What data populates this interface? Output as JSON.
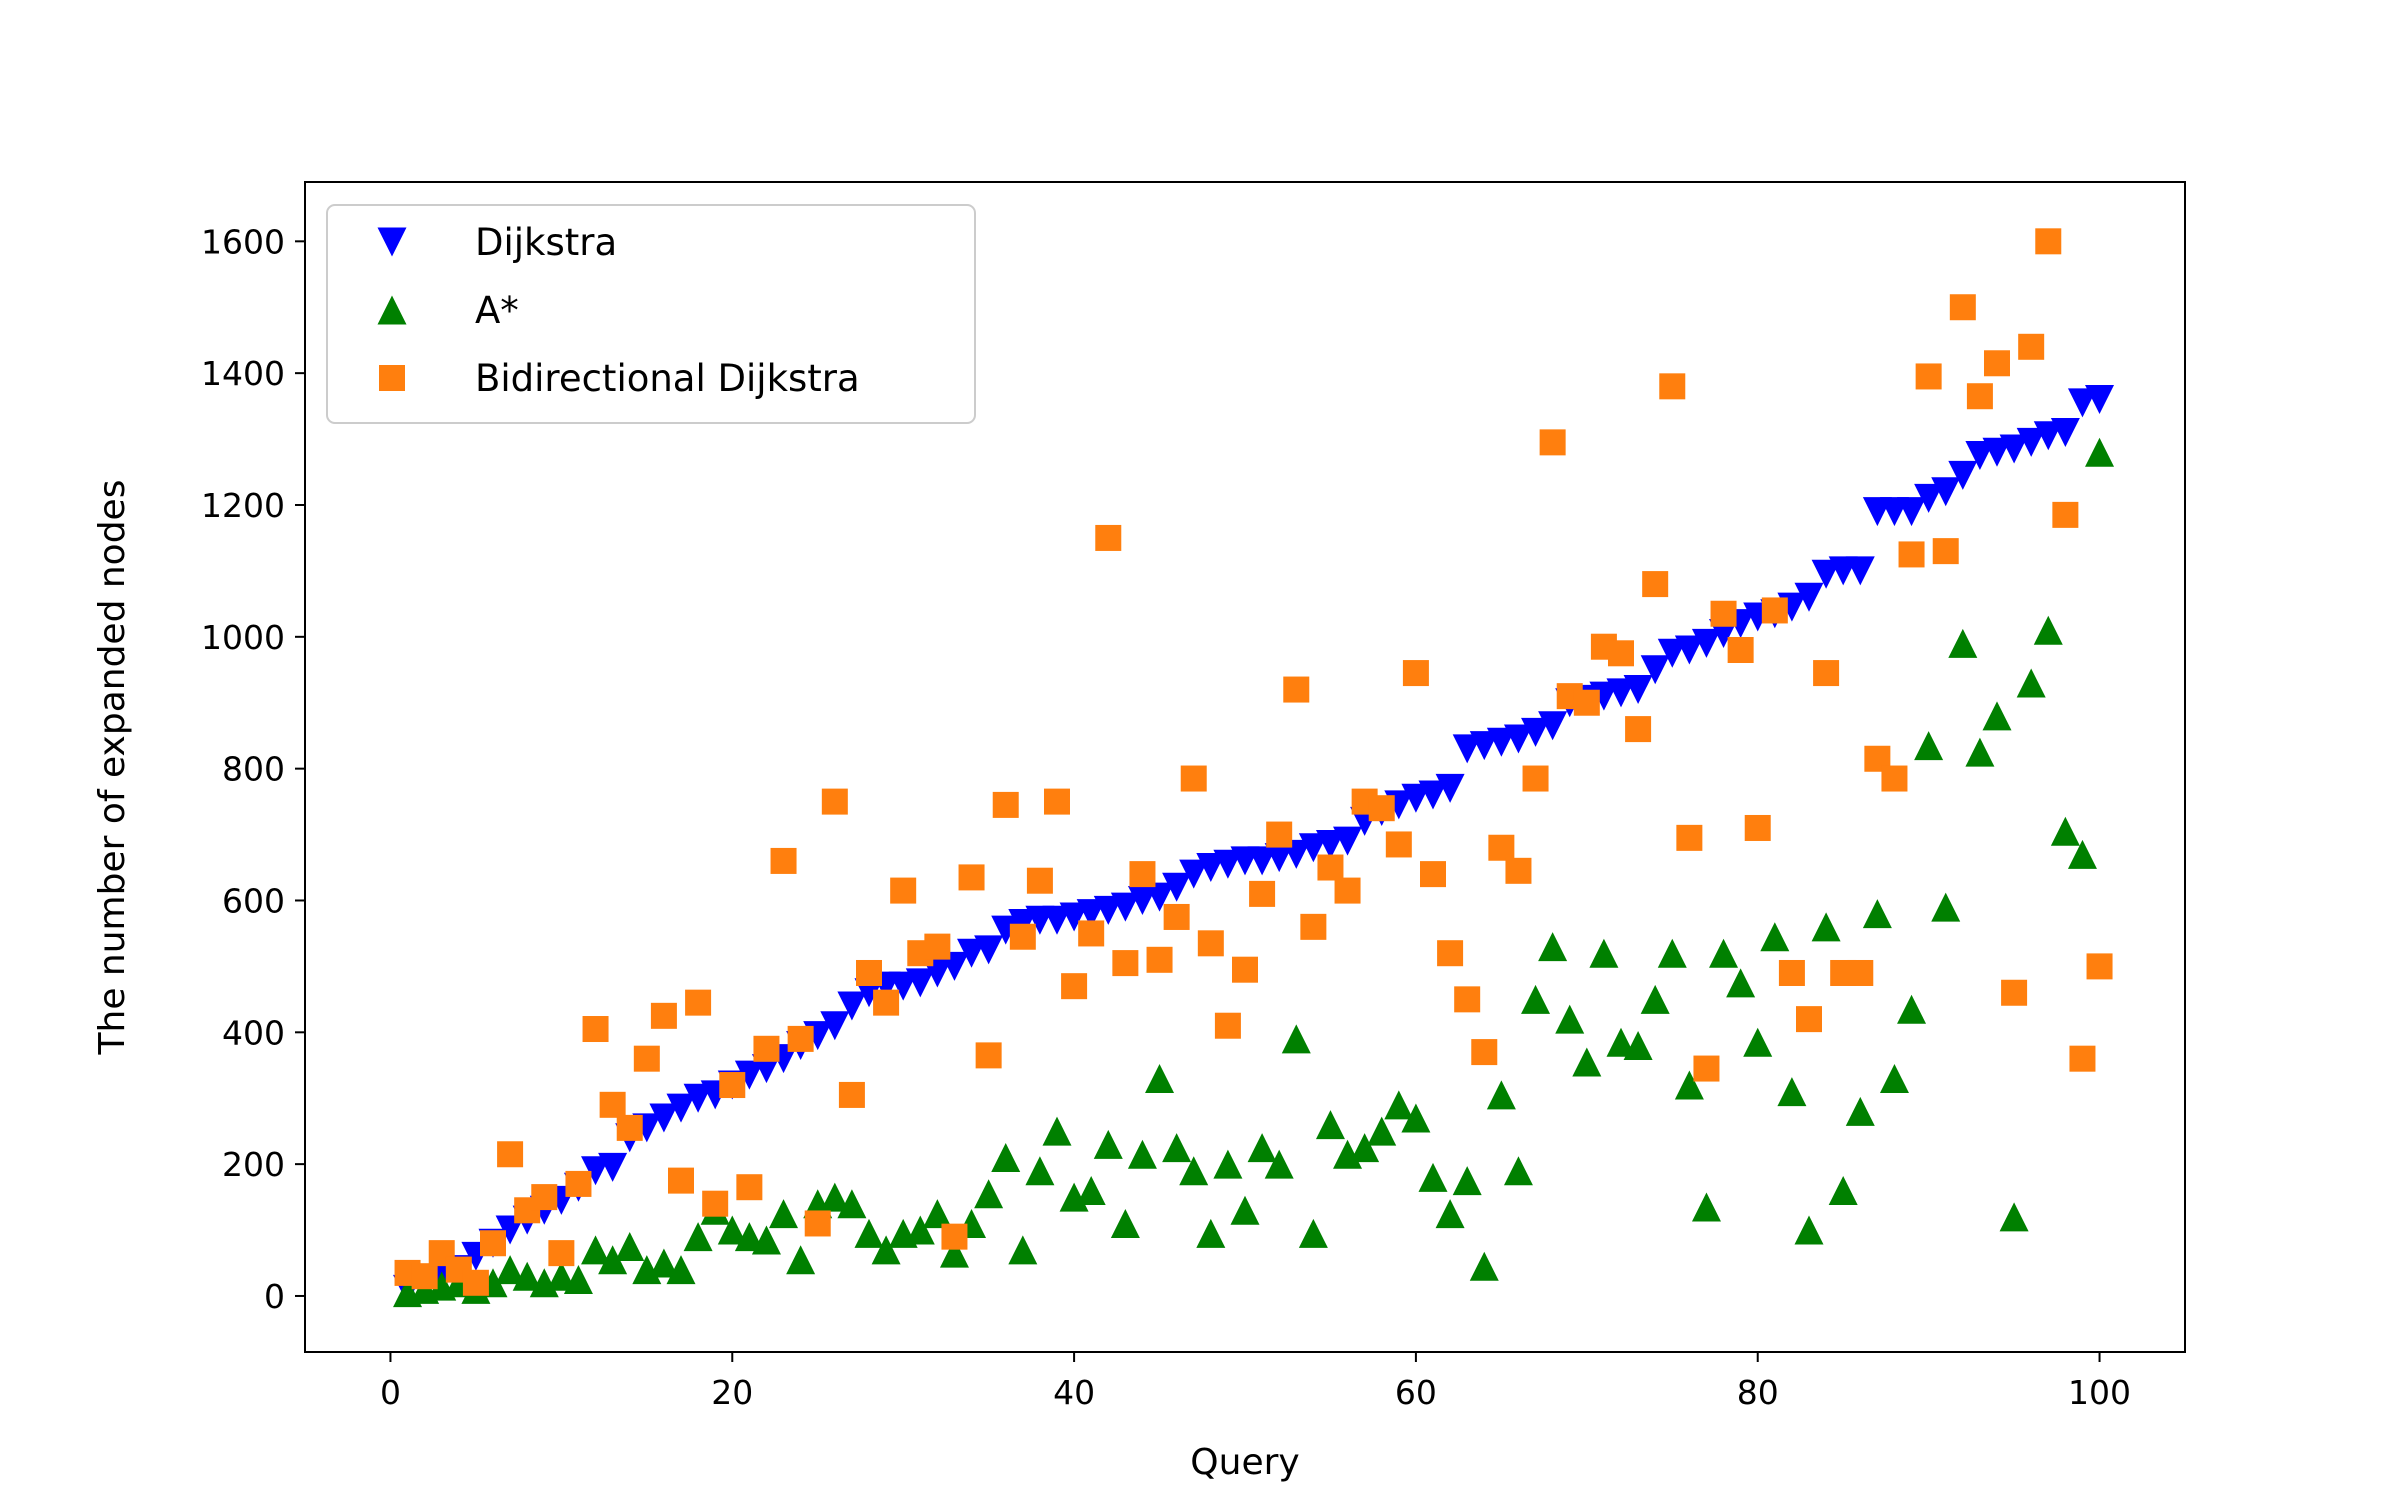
{
  "chart_data": {
    "type": "scatter",
    "title": "",
    "xlabel": "Query",
    "ylabel": "The number of expanded nodes",
    "xlim": [
      -5,
      105
    ],
    "ylim": [
      -85,
      1690
    ],
    "xticks": [
      0,
      20,
      40,
      60,
      80,
      100
    ],
    "yticks": [
      0,
      200,
      400,
      600,
      800,
      1000,
      1200,
      1400,
      1600
    ],
    "legend_position": "top-left",
    "x": [
      1,
      2,
      3,
      4,
      5,
      6,
      7,
      8,
      9,
      10,
      11,
      12,
      13,
      14,
      15,
      16,
      17,
      18,
      19,
      20,
      21,
      22,
      23,
      24,
      25,
      26,
      27,
      28,
      29,
      30,
      31,
      32,
      33,
      34,
      35,
      36,
      37,
      38,
      39,
      40,
      41,
      42,
      43,
      44,
      45,
      46,
      47,
      48,
      49,
      50,
      51,
      52,
      53,
      54,
      55,
      56,
      57,
      58,
      59,
      60,
      61,
      62,
      63,
      64,
      65,
      66,
      67,
      68,
      69,
      70,
      71,
      72,
      73,
      74,
      75,
      76,
      77,
      78,
      79,
      80,
      81,
      82,
      83,
      84,
      85,
      86,
      87,
      88,
      89,
      90,
      91,
      92,
      93,
      94,
      95,
      96,
      97,
      98,
      99,
      100
    ],
    "series": [
      {
        "name": "Dijkstra",
        "marker": "triangle-down",
        "color": "#0000ff",
        "values": [
          10,
          15,
          25,
          40,
          60,
          80,
          100,
          115,
          130,
          145,
          165,
          190,
          195,
          240,
          255,
          270,
          285,
          300,
          305,
          320,
          335,
          345,
          360,
          380,
          395,
          410,
          440,
          460,
          470,
          470,
          475,
          490,
          500,
          520,
          525,
          555,
          565,
          570,
          570,
          575,
          580,
          585,
          590,
          600,
          605,
          620,
          640,
          650,
          655,
          660,
          660,
          665,
          670,
          680,
          685,
          690,
          720,
          735,
          745,
          755,
          760,
          770,
          830,
          835,
          840,
          845,
          855,
          865,
          900,
          905,
          910,
          915,
          920,
          950,
          975,
          980,
          990,
          1005,
          1020,
          1030,
          1035,
          1045,
          1060,
          1095,
          1100,
          1100,
          1190,
          1190,
          1190,
          1210,
          1220,
          1245,
          1275,
          1280,
          1285,
          1295,
          1305,
          1310,
          1355,
          1360
        ]
      },
      {
        "name": "A*",
        "marker": "triangle-up",
        "color": "#008000",
        "values": [
          5,
          10,
          15,
          20,
          10,
          20,
          40,
          30,
          20,
          30,
          25,
          70,
          55,
          75,
          40,
          50,
          40,
          90,
          130,
          100,
          90,
          85,
          125,
          55,
          140,
          150,
          140,
          95,
          70,
          95,
          100,
          125,
          65,
          110,
          155,
          210,
          70,
          190,
          250,
          150,
          160,
          230,
          110,
          215,
          330,
          225,
          190,
          95,
          200,
          130,
          225,
          200,
          390,
          95,
          260,
          215,
          225,
          250,
          290,
          270,
          180,
          125,
          175,
          45,
          305,
          190,
          450,
          530,
          420,
          355,
          520,
          385,
          380,
          450,
          520,
          320,
          135,
          520,
          475,
          385,
          545,
          310,
          100,
          560,
          160,
          280,
          580,
          330,
          435,
          835,
          590,
          990,
          825,
          880,
          120,
          930,
          1010,
          705,
          670,
          1280
        ]
      },
      {
        "name": "Bidirectional Dijkstra",
        "marker": "square",
        "color": "#ff7f0e",
        "values": [
          35,
          30,
          65,
          40,
          20,
          80,
          215,
          130,
          150,
          65,
          170,
          405,
          290,
          255,
          360,
          425,
          175,
          445,
          140,
          320,
          165,
          375,
          660,
          390,
          110,
          750,
          305,
          490,
          445,
          615,
          520,
          530,
          90,
          635,
          365,
          745,
          545,
          630,
          750,
          470,
          550,
          1150,
          505,
          640,
          510,
          575,
          785,
          535,
          410,
          495,
          610,
          700,
          920,
          560,
          650,
          615,
          750,
          740,
          685,
          945,
          640,
          520,
          450,
          370,
          680,
          645,
          785,
          1295,
          910,
          900,
          985,
          975,
          860,
          1080,
          1380,
          695,
          345,
          1035,
          980,
          710,
          1040,
          490,
          420,
          945,
          490,
          490,
          815,
          785,
          1125,
          1395,
          1130,
          1500,
          1365,
          1415,
          460,
          1440,
          1600,
          1185,
          360,
          500
        ]
      }
    ]
  }
}
